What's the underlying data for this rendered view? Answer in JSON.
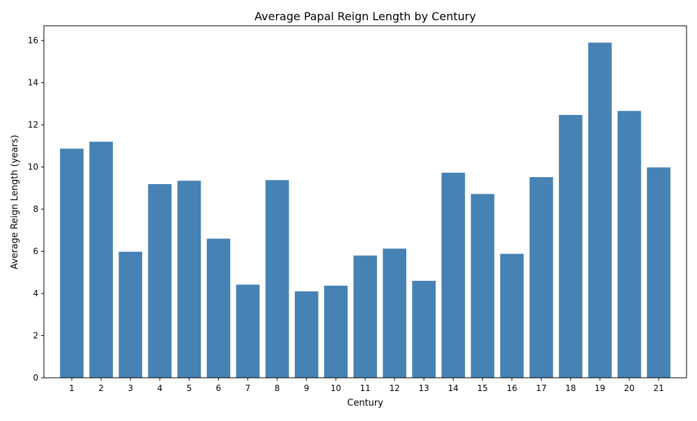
{
  "chart_data": {
    "type": "bar",
    "title": "Average Papal Reign Length by Century",
    "xlabel": "Century",
    "ylabel": "Average Reign Length (years)",
    "categories": [
      "1",
      "2",
      "3",
      "4",
      "5",
      "6",
      "7",
      "8",
      "9",
      "10",
      "11",
      "12",
      "13",
      "14",
      "15",
      "16",
      "17",
      "18",
      "19",
      "20",
      "21"
    ],
    "values": [
      10.87,
      11.2,
      5.98,
      9.19,
      9.35,
      6.6,
      4.42,
      9.38,
      4.1,
      4.37,
      5.8,
      6.13,
      4.6,
      9.73,
      8.72,
      5.88,
      9.52,
      12.47,
      15.9,
      12.66,
      9.98
    ],
    "ylim": [
      0,
      16.7
    ],
    "yticks": [
      0,
      2,
      4,
      6,
      8,
      10,
      12,
      14,
      16
    ],
    "bar_color": "#4682b4",
    "grid": false,
    "legend": false
  }
}
